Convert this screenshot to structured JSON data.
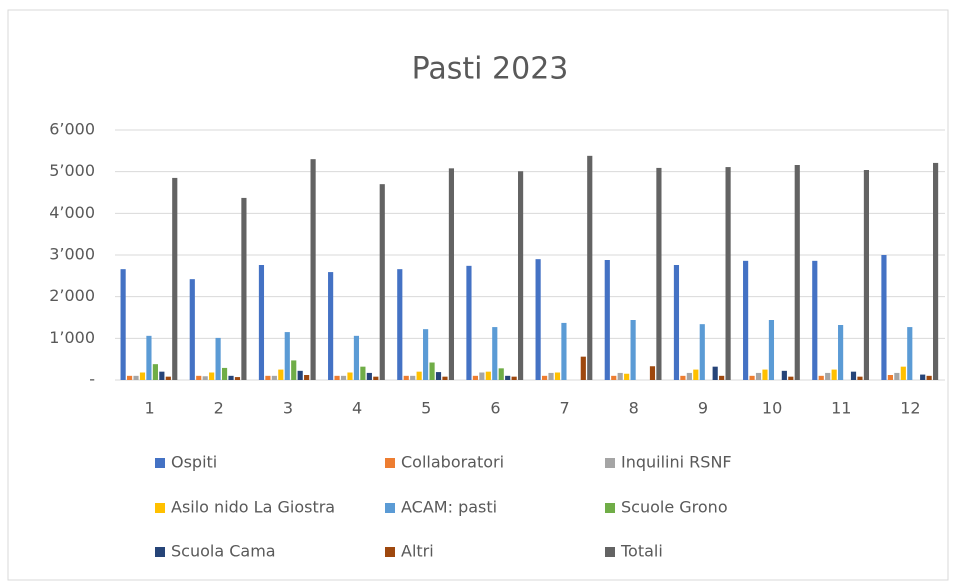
{
  "chart_data": {
    "type": "bar",
    "title": "Pasti 2023",
    "categories": [
      "1",
      "2",
      "3",
      "4",
      "5",
      "6",
      "7",
      "8",
      "9",
      "10",
      "11",
      "12"
    ],
    "series": [
      {
        "name": "Ospiti",
        "color": "#4472c4",
        "values": [
          2660,
          2420,
          2760,
          2590,
          2660,
          2740,
          2900,
          2880,
          2760,
          2860,
          2860,
          3000
        ]
      },
      {
        "name": "Collaboratori",
        "color": "#ed7d31",
        "values": [
          100,
          100,
          100,
          100,
          100,
          100,
          100,
          100,
          100,
          100,
          100,
          120
        ]
      },
      {
        "name": "Inquilini RSNF",
        "color": "#a5a5a5",
        "values": [
          100,
          90,
          100,
          100,
          100,
          180,
          170,
          170,
          170,
          170,
          170,
          170
        ]
      },
      {
        "name": "Asilo nido La Giostra",
        "color": "#ffc000",
        "values": [
          180,
          180,
          250,
          180,
          200,
          200,
          180,
          150,
          250,
          250,
          250,
          320
        ]
      },
      {
        "name": "ACAM: pasti",
        "color": "#5b9bd5",
        "values": [
          1060,
          1010,
          1150,
          1060,
          1220,
          1270,
          1370,
          1440,
          1340,
          1440,
          1320,
          1270
        ]
      },
      {
        "name": "Scuole Grono",
        "color": "#70ad47",
        "values": [
          380,
          290,
          470,
          320,
          420,
          280,
          0,
          0,
          0,
          0,
          0,
          0
        ]
      },
      {
        "name": "Scuola Cama",
        "color": "#264478",
        "values": [
          200,
          100,
          220,
          170,
          190,
          100,
          0,
          0,
          320,
          220,
          200,
          130
        ]
      },
      {
        "name": "Altri",
        "color": "#9e480e",
        "values": [
          80,
          70,
          120,
          80,
          80,
          80,
          560,
          330,
          100,
          80,
          80,
          100
        ]
      },
      {
        "name": "Totali",
        "color": "#636363",
        "values": [
          4850,
          4370,
          5300,
          4700,
          5080,
          5010,
          5380,
          5090,
          5110,
          5160,
          5040,
          5210
        ]
      }
    ],
    "ylim": [
      0,
      6000
    ],
    "yticks": [
      {
        "value": 0,
        "label": "-"
      },
      {
        "value": 1000,
        "label": "1’000"
      },
      {
        "value": 2000,
        "label": "2’000"
      },
      {
        "value": 3000,
        "label": "3’000"
      },
      {
        "value": 4000,
        "label": "4’000"
      },
      {
        "value": 5000,
        "label": "5’000"
      },
      {
        "value": 6000,
        "label": "6’000"
      }
    ],
    "grid": true
  }
}
